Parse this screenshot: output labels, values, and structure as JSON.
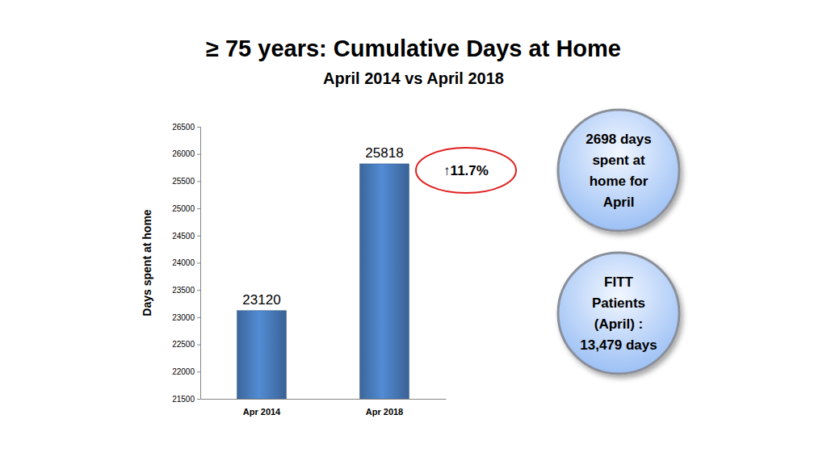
{
  "chart_data": {
    "type": "bar",
    "title": "≥ 75 years: Cumulative Days at Home",
    "subtitle": "April 2014 vs April 2018",
    "y_label": "Days spent at home",
    "categories": [
      "Apr 2014",
      "Apr 2018"
    ],
    "values": [
      23120,
      25818
    ],
    "color": "#4a7ebf",
    "data_labels": true,
    "grid": false,
    "ylim": [
      21500,
      26500
    ],
    "yticks": [
      21500,
      22000,
      22500,
      23000,
      23500,
      24000,
      24500,
      25000,
      25500,
      26000,
      26500
    ],
    "annotations": [
      "↑11.7%"
    ],
    "callouts": [
      [
        "2698 days",
        "spent at",
        "home for",
        "April"
      ],
      [
        "FITT",
        "Patients",
        "(April) :",
        "13,479 days"
      ]
    ]
  }
}
